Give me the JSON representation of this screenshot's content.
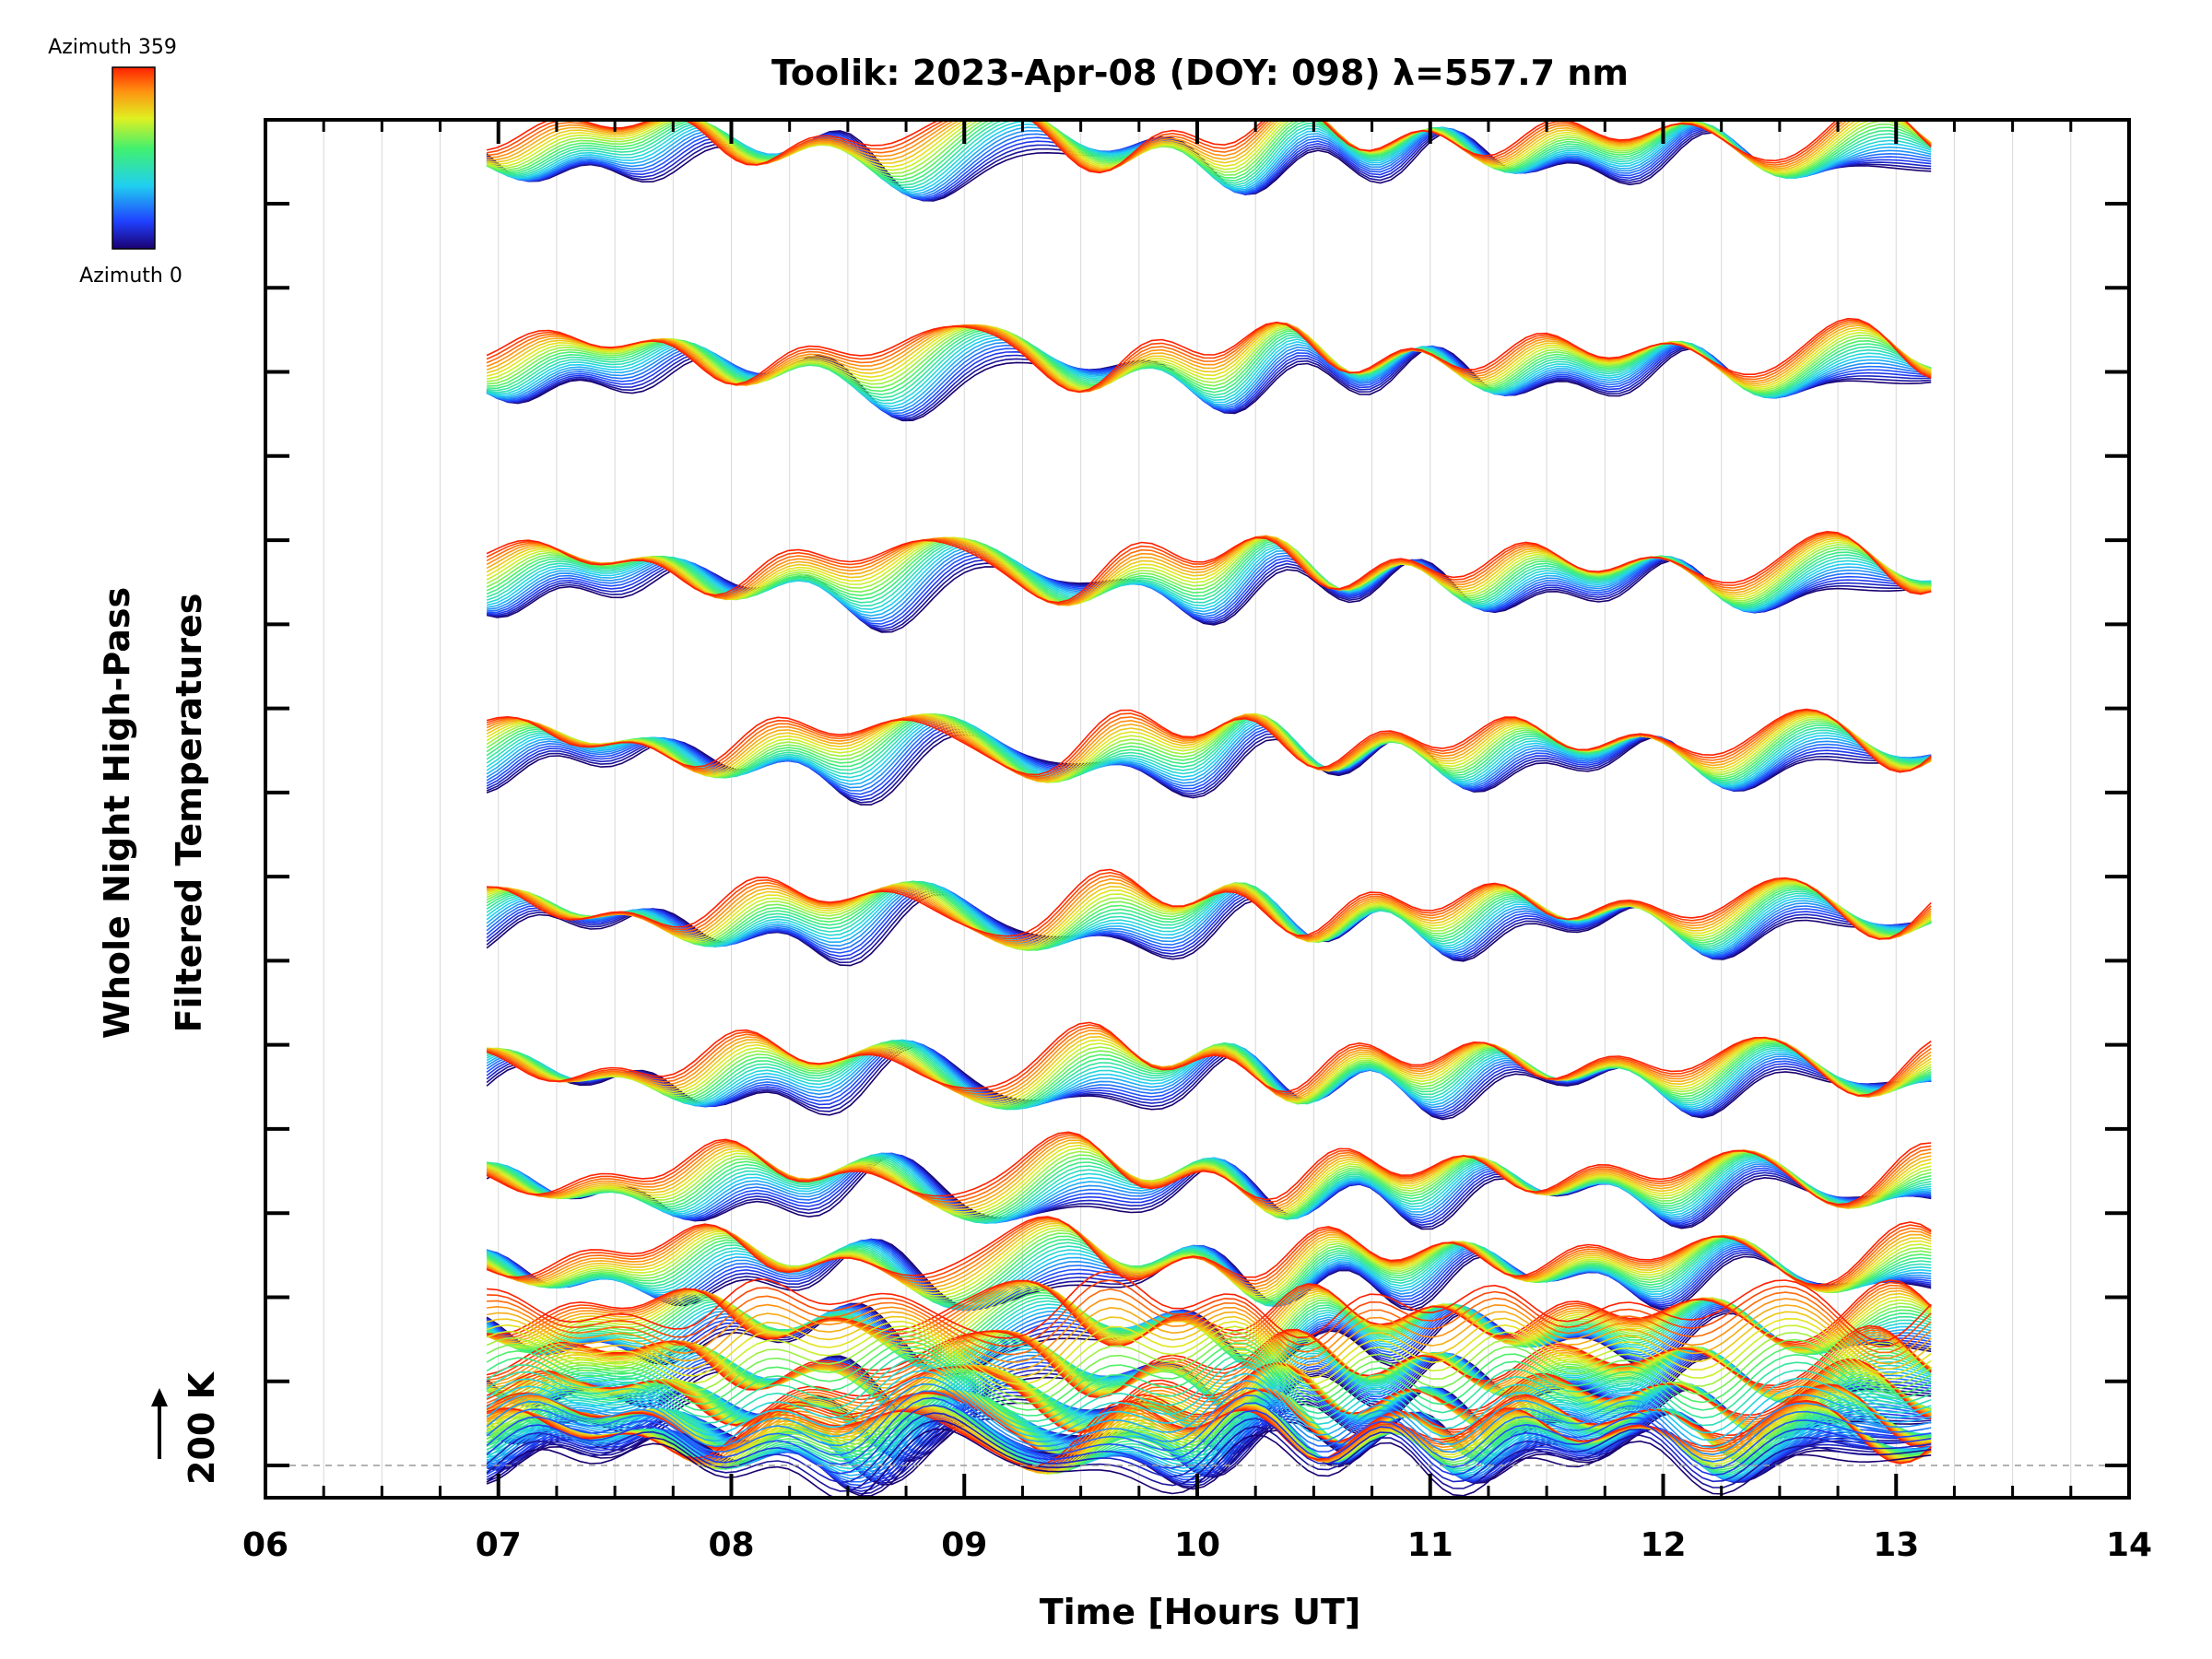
{
  "chart_data": {
    "type": "line",
    "title": "Toolik: 2023-Apr-08 (DOY: 098) λ=557.7 nm",
    "xlabel": "Time [Hours UT]",
    "ylabel_line1": "Whole Night High-Pass",
    "ylabel_line2": "Filtered Temperatures",
    "scale_label": "200 K",
    "xlim": [
      6,
      14
    ],
    "x_tick_labels": [
      "06",
      "07",
      "08",
      "09",
      "10",
      "11",
      "12",
      "13",
      "14"
    ],
    "data_time_range": [
      6.95,
      13.15
    ],
    "y_major_ticks": 16,
    "colorbar": {
      "top_label": "Azimuth 359",
      "bottom_label": "Azimuth 0"
    },
    "azimuth_range": [
      0,
      359
    ],
    "grid": true,
    "description_series": "Stacked high-pass filtered temperature traces, one per azimuth, colored by azimuth from dark blue (0) to red (359); groups repeat down the plot."
  }
}
